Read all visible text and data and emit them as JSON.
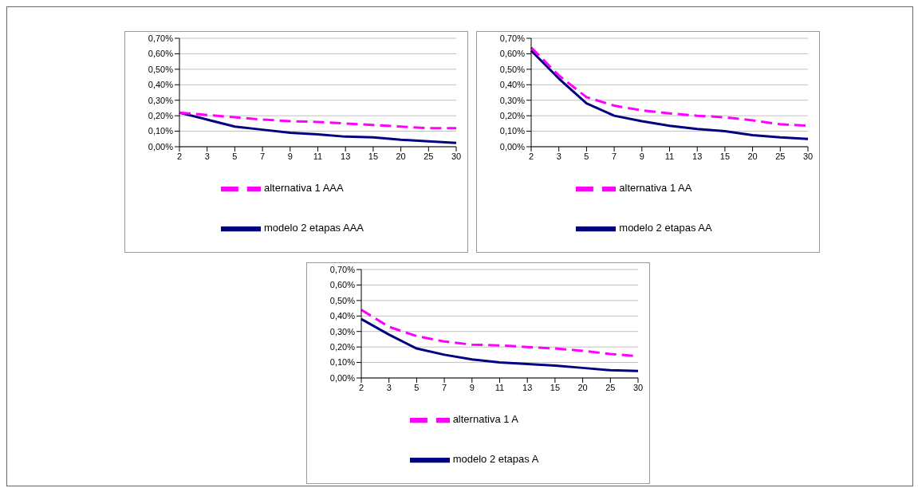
{
  "chart_data": [
    {
      "type": "line",
      "categories": [
        "2",
        "3",
        "5",
        "7",
        "9",
        "11",
        "13",
        "15",
        "20",
        "25",
        "30"
      ],
      "series": [
        {
          "name": "modelo 2 etapas AAA",
          "color": "#000080",
          "line_style": "solid",
          "values": [
            0.22,
            0.175,
            0.13,
            0.11,
            0.09,
            0.08,
            0.065,
            0.06,
            0.045,
            0.035,
            0.025
          ]
        },
        {
          "name": "alternativa 1 AAA",
          "color": "#ff00ff",
          "line_style": "dashed",
          "values": [
            0.22,
            0.205,
            0.19,
            0.175,
            0.165,
            0.16,
            0.15,
            0.14,
            0.13,
            0.12,
            0.12
          ]
        }
      ],
      "ylim": [
        0,
        0.7
      ],
      "yticks": [
        {
          "value": 0,
          "label": "0,00%"
        },
        {
          "value": 0.1,
          "label": "0,10%"
        },
        {
          "value": 0.2,
          "label": "0,20%"
        },
        {
          "value": 0.3,
          "label": "0,30%"
        },
        {
          "value": 0.4,
          "label": "0,40%"
        },
        {
          "value": 0.5,
          "label": "0,50%"
        },
        {
          "value": 0.6,
          "label": "0,60%"
        },
        {
          "value": 0.7,
          "label": "0,70%"
        }
      ],
      "grid": "y",
      "legend": "bottom",
      "marker": "none"
    },
    {
      "type": "line",
      "categories": [
        "2",
        "3",
        "5",
        "7",
        "9",
        "11",
        "13",
        "15",
        "20",
        "25",
        "30"
      ],
      "series": [
        {
          "name": "modelo 2 etapas AA",
          "color": "#000080",
          "line_style": "solid",
          "values": [
            0.62,
            0.44,
            0.28,
            0.2,
            0.165,
            0.135,
            0.115,
            0.1,
            0.075,
            0.06,
            0.05
          ]
        },
        {
          "name": "alternativa 1 AA",
          "color": "#ff00ff",
          "line_style": "dashed",
          "values": [
            0.64,
            0.46,
            0.32,
            0.265,
            0.235,
            0.215,
            0.2,
            0.19,
            0.17,
            0.145,
            0.135
          ]
        }
      ],
      "ylim": [
        0,
        0.7
      ],
      "yticks": [
        {
          "value": 0,
          "label": "0,00%"
        },
        {
          "value": 0.1,
          "label": "0,10%"
        },
        {
          "value": 0.2,
          "label": "0,20%"
        },
        {
          "value": 0.3,
          "label": "0,30%"
        },
        {
          "value": 0.4,
          "label": "0,40%"
        },
        {
          "value": 0.5,
          "label": "0,50%"
        },
        {
          "value": 0.6,
          "label": "0,60%"
        },
        {
          "value": 0.7,
          "label": "0,70%"
        }
      ],
      "grid": "y",
      "legend": "bottom",
      "marker": "none"
    },
    {
      "type": "line",
      "categories": [
        "2",
        "3",
        "5",
        "7",
        "9",
        "11",
        "13",
        "15",
        "20",
        "25",
        "30"
      ],
      "series": [
        {
          "name": "modelo 2 etapas A",
          "color": "#000080",
          "line_style": "solid",
          "values": [
            0.38,
            0.28,
            0.19,
            0.15,
            0.12,
            0.1,
            0.09,
            0.08,
            0.065,
            0.05,
            0.045
          ]
        },
        {
          "name": "alternativa 1 A",
          "color": "#ff00ff",
          "line_style": "dashed",
          "values": [
            0.44,
            0.33,
            0.27,
            0.235,
            0.215,
            0.21,
            0.2,
            0.19,
            0.175,
            0.155,
            0.14
          ]
        }
      ],
      "ylim": [
        0,
        0.7
      ],
      "yticks": [
        {
          "value": 0,
          "label": "0,00%"
        },
        {
          "value": 0.1,
          "label": "0,10%"
        },
        {
          "value": 0.2,
          "label": "0,20%"
        },
        {
          "value": 0.3,
          "label": "0,30%"
        },
        {
          "value": 0.4,
          "label": "0,40%"
        },
        {
          "value": 0.5,
          "label": "0,50%"
        },
        {
          "value": 0.6,
          "label": "0,60%"
        },
        {
          "value": 0.7,
          "label": "0,70%"
        }
      ],
      "grid": "y",
      "legend": "bottom",
      "marker": "none"
    }
  ]
}
